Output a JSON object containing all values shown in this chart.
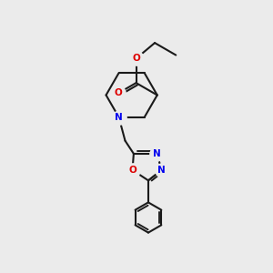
{
  "bg": "#ebebeb",
  "bc": "#1a1a1a",
  "Nc": "#0000ee",
  "Oc": "#dd0000",
  "lw": 1.5,
  "fs": 7.5,
  "xlim": [
    0,
    10
  ],
  "ylim": [
    -1,
    10
  ]
}
